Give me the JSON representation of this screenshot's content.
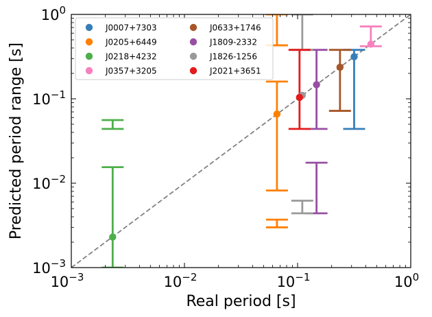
{
  "chart_data": {
    "type": "scatter",
    "xscale": "log",
    "yscale": "log",
    "xlabel": "Real period [s]",
    "ylabel": "Predicted period range [s]",
    "xlim": [
      0.001,
      1
    ],
    "ylim": [
      0.001,
      1
    ],
    "xticks": [
      {
        "value": 0.001,
        "base": "10",
        "exp": "−3"
      },
      {
        "value": 0.01,
        "base": "10",
        "exp": "−2"
      },
      {
        "value": 0.1,
        "base": "10",
        "exp": "−1"
      },
      {
        "value": 1,
        "base": "10",
        "exp": "0"
      }
    ],
    "yticks": [
      {
        "value": 0.001,
        "base": "10",
        "exp": "−3"
      },
      {
        "value": 0.01,
        "base": "10",
        "exp": "−2"
      },
      {
        "value": 0.1,
        "base": "10",
        "exp": "−1"
      },
      {
        "value": 1,
        "base": "10",
        "exp": "0"
      }
    ],
    "identity_line": true,
    "legend_position": "top-left",
    "series": [
      {
        "name": "J0007+7303",
        "color": "#377eb8",
        "x": 0.316,
        "y": 0.315,
        "ranges": [
          [
            0.044,
            0.38
          ]
        ]
      },
      {
        "name": "J0205+6449",
        "color": "#ff7f00",
        "x": 0.0657,
        "y": 0.066,
        "ranges": [
          [
            0.0082,
            0.16
          ],
          [
            0.003,
            0.0037
          ],
          [
            0.43,
            1.0
          ]
        ]
      },
      {
        "name": "J0218+4232",
        "color": "#4daf4a",
        "x": 0.00232,
        "y": 0.0023,
        "ranges": [
          [
            0.001,
            0.0155
          ],
          [
            0.044,
            0.056
          ]
        ]
      },
      {
        "name": "J0357+3205",
        "color": "#f781bf",
        "x": 0.444,
        "y": 0.444,
        "ranges": [
          [
            0.42,
            0.72
          ]
        ]
      },
      {
        "name": "J0633+1746",
        "color": "#a65628",
        "x": 0.237,
        "y": 0.237,
        "ranges": [
          [
            0.072,
            0.38
          ]
        ]
      },
      {
        "name": "J1809-2332",
        "color": "#984ea3",
        "x": 0.147,
        "y": 0.147,
        "ranges": [
          [
            0.044,
            0.38
          ],
          [
            0.0044,
            0.0175
          ]
        ]
      },
      {
        "name": "J1826-1256",
        "color": "#999999",
        "x": 0.11,
        "y": 0.11,
        "ranges": [
          [
            0.0044,
            0.0062
          ],
          [
            0.38,
            1.0
          ]
        ]
      },
      {
        "name": "J2021+3651",
        "color": "#e41a1c",
        "x": 0.104,
        "y": 0.104,
        "ranges": [
          [
            0.044,
            0.38
          ]
        ]
      }
    ]
  }
}
